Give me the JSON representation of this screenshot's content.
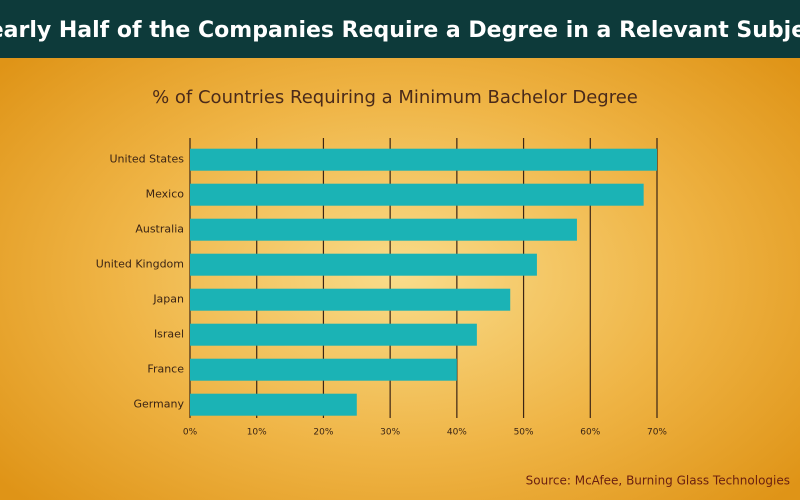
{
  "chart_data": {
    "type": "hbar",
    "title": "Nearly Half of the Companies Require a Degree in a Relevant Subject",
    "subtitle": "% of Countries Requiring a Minimum Bachelor Degree",
    "source": "Source: McAfee, Burning Glass Technologies",
    "categories": [
      "United States",
      "Mexico",
      "Australia",
      "United Kingdom",
      "Japan",
      "Israel",
      "France",
      "Germany"
    ],
    "values": [
      70,
      68,
      58,
      52,
      48,
      43,
      40,
      25
    ],
    "color": "#1bb3b5",
    "xlim": [
      0,
      70
    ],
    "xticks": [
      {
        "value": 0,
        "label": "0%"
      },
      {
        "value": 10,
        "label": "10%"
      },
      {
        "value": 20,
        "label": "20%"
      },
      {
        "value": 30,
        "label": "30%"
      },
      {
        "value": 40,
        "label": "40%"
      },
      {
        "value": 50,
        "label": "50%"
      },
      {
        "value": 60,
        "label": "60%"
      },
      {
        "value": 70,
        "label": "70%"
      }
    ],
    "grid": true
  }
}
